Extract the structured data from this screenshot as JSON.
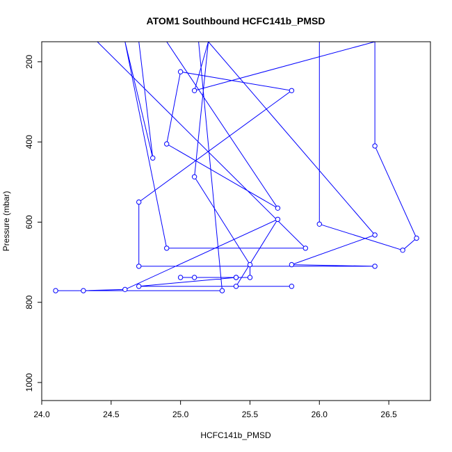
{
  "chart_data": {
    "type": "line",
    "title": "ATOM1 Southbound HCFC141b_PMSD",
    "xlabel": "HCFC141b_PMSD",
    "ylabel": "Pressure (mbar)",
    "xlim": [
      24.0,
      26.8
    ],
    "ylim": [
      1045,
      150
    ],
    "y_reversed": true,
    "x_ticks": [
      24.0,
      24.5,
      25.0,
      25.5,
      26.0,
      26.5
    ],
    "x_tick_labels": [
      "24.0",
      "24.5",
      "25.0",
      "25.5",
      "26.0",
      "26.5"
    ],
    "y_ticks": [
      200,
      400,
      600,
      800,
      1000
    ],
    "y_tick_labels": [
      "200",
      "400",
      "600",
      "800",
      "1000"
    ],
    "grid": false,
    "legend": "none",
    "colors": {
      "series": "#0000ff",
      "axis": "#000000",
      "background": "#ffffff"
    },
    "series": [
      {
        "marker": "open-circle",
        "points": [
          [
            24.4,
            150
          ],
          [
            25.9,
            665
          ],
          [
            24.9,
            665
          ],
          [
            24.6,
            150
          ],
          [
            24.8,
            440
          ],
          [
            24.7,
            150
          ],
          [
            24.9,
            150
          ],
          [
            25.7,
            565
          ],
          [
            24.9,
            405
          ],
          [
            25.0,
            225
          ],
          [
            25.8,
            272
          ],
          [
            24.7,
            550
          ],
          [
            24.7,
            710
          ],
          [
            26.4,
            710
          ],
          [
            25.8,
            706
          ],
          [
            26.4,
            632
          ],
          [
            25.2,
            150
          ],
          [
            25.1,
            272
          ],
          [
            26.4,
            150
          ],
          [
            26.4,
            410
          ],
          [
            26.7,
            640
          ],
          [
            26.6,
            670
          ],
          [
            26.0,
            605
          ],
          [
            26.0,
            150
          ],
          [
            25.2,
            150
          ],
          [
            25.1,
            487
          ],
          [
            25.5,
            706
          ],
          [
            25.5,
            738
          ],
          [
            25.0,
            738
          ],
          [
            25.4,
            738
          ],
          [
            25.1,
            738
          ],
          [
            25.4,
            738
          ],
          [
            24.7,
            760
          ],
          [
            25.8,
            760
          ],
          [
            25.4,
            760
          ],
          [
            25.7,
            593
          ],
          [
            24.6,
            768
          ],
          [
            24.3,
            771
          ],
          [
            24.1,
            771
          ],
          [
            25.3,
            771
          ],
          [
            25.13,
            150
          ]
        ]
      }
    ]
  }
}
